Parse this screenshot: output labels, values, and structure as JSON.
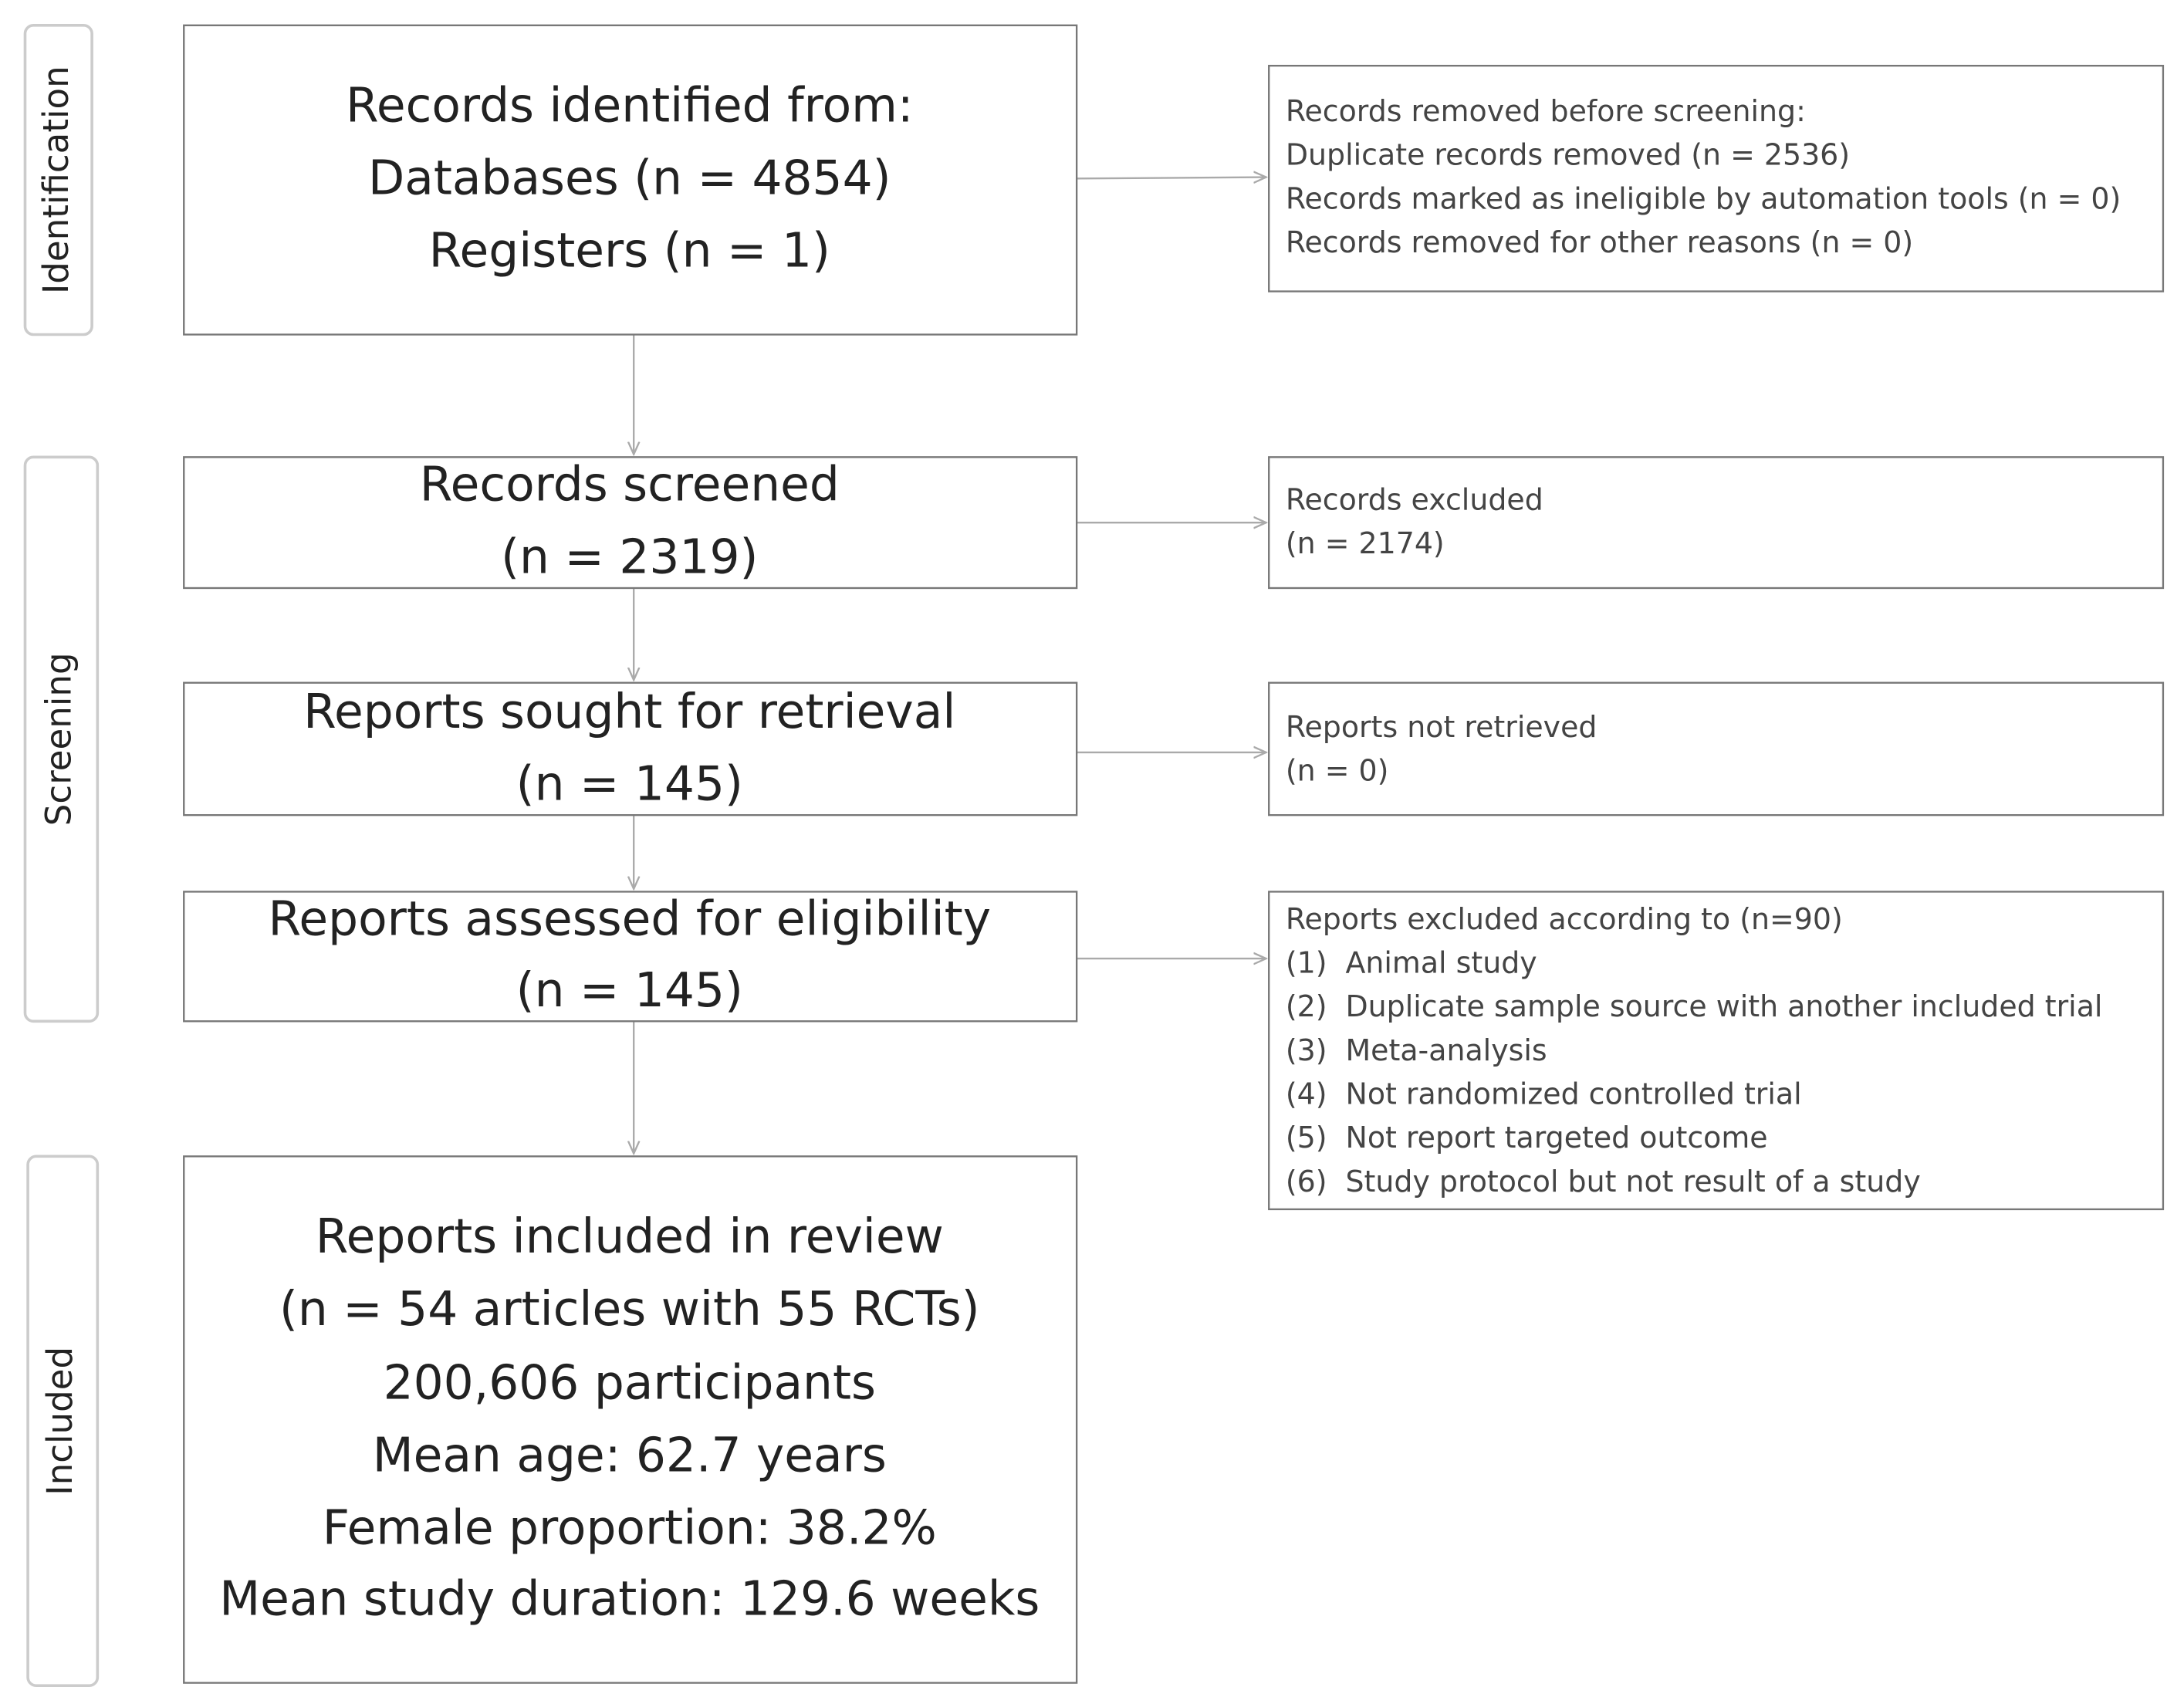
{
  "phases": [
    "Identification",
    "Screening",
    "Included"
  ],
  "main_boxes": [
    {
      "lines": [
        "Records identified from:",
        "Databases (n = 4854)",
        "Registers (n = 1)"
      ]
    },
    {
      "lines": [
        "Records screened",
        "(n = 2319)"
      ]
    },
    {
      "lines": [
        "Reports sought for retrieval",
        "(n = 145)"
      ]
    },
    {
      "lines": [
        "Reports assessed for eligibility",
        "(n = 145)"
      ]
    },
    {
      "lines": [
        "Reports included in review",
        "(n = 54 articles with 55 RCTs)",
        "200,606 participants",
        "Mean age: 62.7 years",
        "Female proportion: 38.2%",
        "Mean study duration: 129.6 weeks"
      ]
    }
  ],
  "side_boxes": [
    {
      "lines": [
        "Records removed before screening:",
        "Duplicate records removed  (n = 2536)",
        "Records marked as ineligible by automation tools (n = 0)",
        "Records removed for other reasons (n = 0)"
      ]
    },
    {
      "lines": [
        "Records excluded",
        "(n = 2174)"
      ]
    },
    {
      "lines": [
        "Reports not retrieved",
        "(n = 0)"
      ]
    },
    {
      "lines": [
        "Reports excluded according to (n=90)"
      ],
      "items": [
        {
          "marker": "(1)",
          "text": "Animal study"
        },
        {
          "marker": "(2)",
          "text": "Duplicate sample source with another included trial"
        },
        {
          "marker": "(3)",
          "text": "Meta-analysis"
        },
        {
          "marker": "(4)",
          "text": "Not randomized controlled trial"
        },
        {
          "marker": "(5)",
          "text": "Not report targeted outcome"
        },
        {
          "marker": "(6)",
          "text": "Study protocol but not result of a study"
        }
      ]
    }
  ]
}
